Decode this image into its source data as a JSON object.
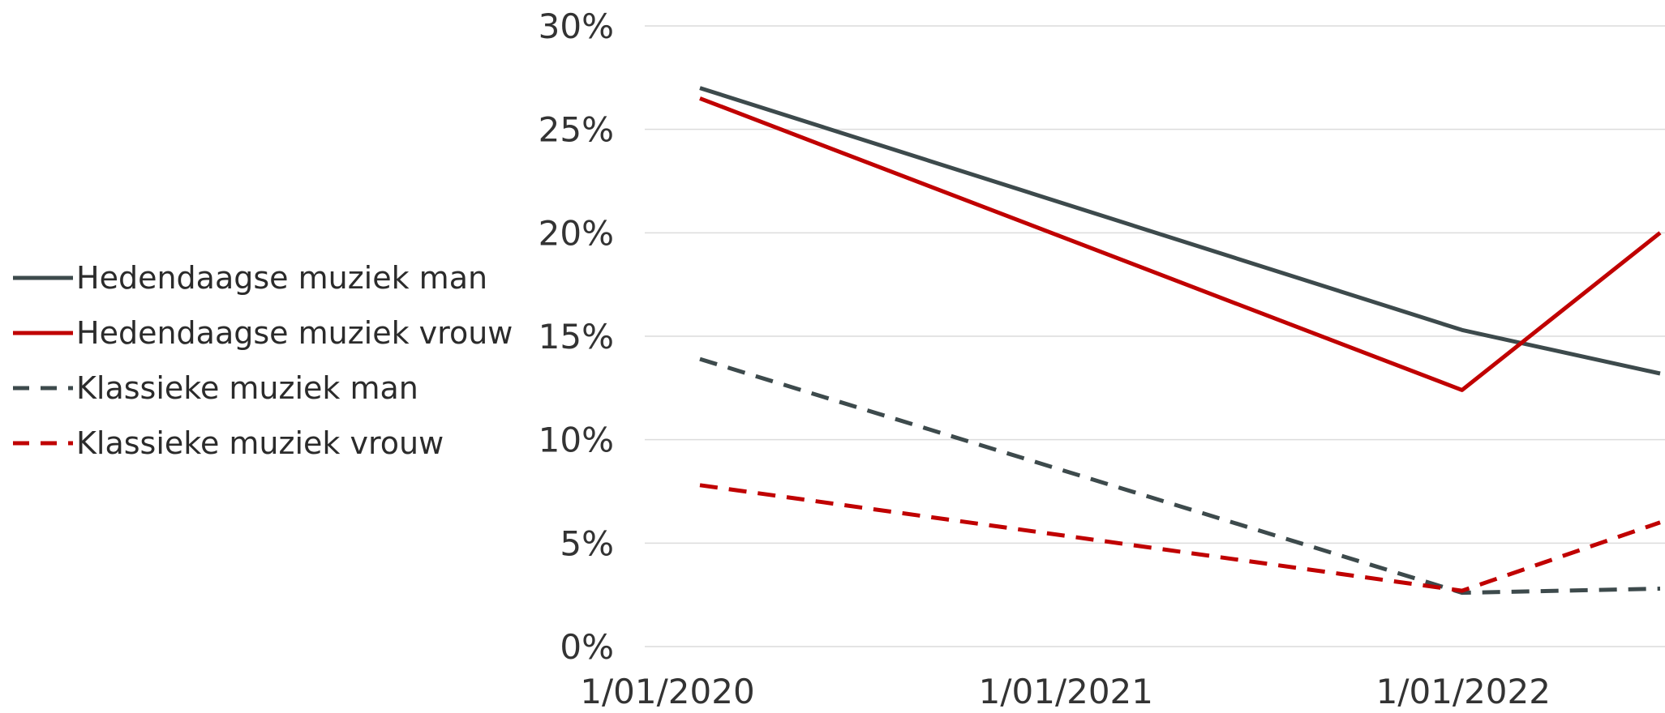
{
  "chart_data": {
    "type": "line",
    "title": "",
    "xlabel": "",
    "ylabel": "",
    "x": [
      "2020-01-01",
      "2021-12-01",
      "2022-06-01"
    ],
    "x_ticks": [
      "1/01/2020",
      "1/01/2021",
      "1/01/2022"
    ],
    "x_tick_values": [
      "2020-01-01",
      "2021-01-01",
      "2022-01-01"
    ],
    "ylim": [
      0,
      30
    ],
    "y_ticks": [
      0,
      5,
      10,
      15,
      20,
      25,
      30
    ],
    "y_tick_labels": [
      "0%",
      "5%",
      "10%",
      "15%",
      "20%",
      "25%",
      "30%"
    ],
    "y_unit": "%",
    "grid": true,
    "legend": "left",
    "series": [
      {
        "name": "Hedendaagse muziek man",
        "values": [
          27.0,
          15.3,
          13.2
        ],
        "color": "#3d4a4c",
        "style": "solid"
      },
      {
        "name": "Hedendaagse muziek vrouw",
        "values": [
          26.5,
          12.4,
          20.0
        ],
        "color": "#c00000",
        "style": "solid"
      },
      {
        "name": "Klassieke muziek man",
        "values": [
          13.9,
          2.6,
          2.8
        ],
        "color": "#3d4a4c",
        "style": "dashed"
      },
      {
        "name": "Klassieke muziek vrouw",
        "values": [
          7.8,
          2.7,
          6.0
        ],
        "color": "#c00000",
        "style": "dashed"
      }
    ]
  }
}
